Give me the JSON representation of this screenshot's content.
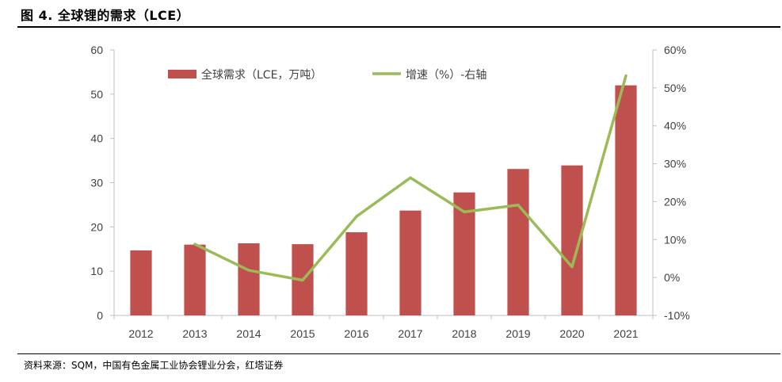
{
  "figure": {
    "title": "图 4. 全球锂的需求（LCE）",
    "source": "资料来源：SQM，中国有色金属工业协会锂业分会，红塔证券"
  },
  "chart_data": {
    "type": "bar",
    "title": "",
    "categories": [
      "2012",
      "2013",
      "2014",
      "2015",
      "2016",
      "2017",
      "2018",
      "2019",
      "2020",
      "2021"
    ],
    "series": [
      {
        "name": "全球需求（LCE，万吨）",
        "type": "bar",
        "axis": "left",
        "color": "#c0504d",
        "values": [
          14.7,
          16.0,
          16.3,
          16.1,
          18.8,
          23.7,
          27.8,
          33.1,
          33.9,
          52.0
        ]
      },
      {
        "name": "增速（%）-右轴",
        "type": "line",
        "axis": "right",
        "color": "#9bbb59",
        "values": [
          null,
          8.8,
          1.9,
          -0.7,
          16.1,
          26.3,
          17.3,
          19.1,
          2.8,
          53.2
        ]
      }
    ],
    "y_left": {
      "min": 0,
      "max": 60,
      "step": 10,
      "tick_labels": [
        "0",
        "10",
        "20",
        "30",
        "40",
        "50",
        "60"
      ]
    },
    "y_right": {
      "min": -10,
      "max": 60,
      "step": 10,
      "tick_labels": [
        "-10%",
        "0%",
        "10%",
        "20%",
        "30%",
        "40%",
        "50%",
        "60%"
      ]
    },
    "legend_position": "top-left inside",
    "grid": false
  }
}
